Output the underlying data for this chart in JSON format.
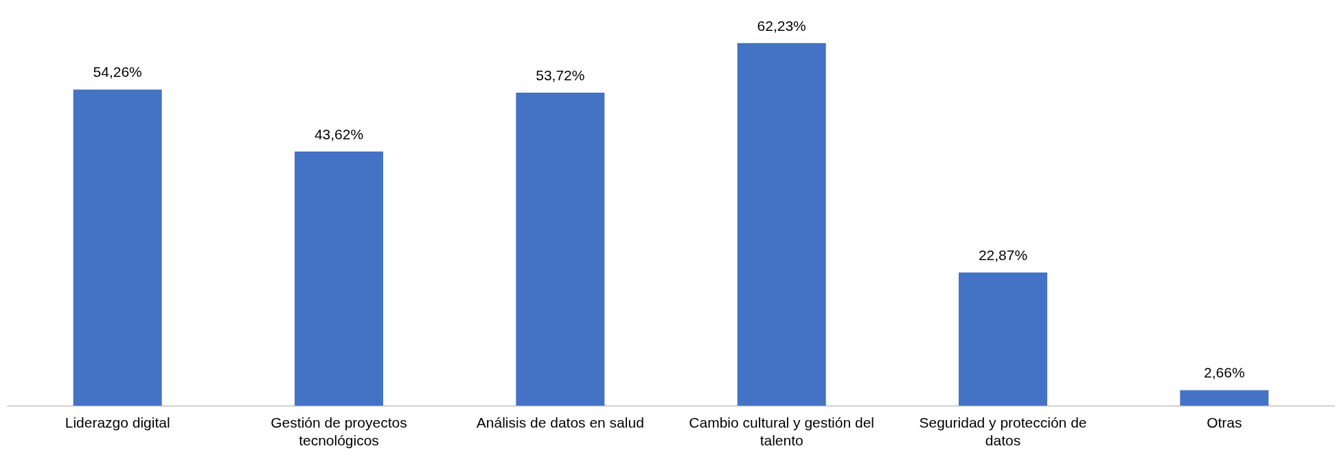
{
  "chart_data": {
    "type": "bar",
    "categories": [
      "Liderazgo digital",
      "Gestión de proyectos tecnológicos",
      "Análisis de datos en salud",
      "Cambio cultural y gestión del talento",
      "Seguridad y protección de datos",
      "Otras"
    ],
    "values": [
      54.26,
      43.62,
      53.72,
      62.23,
      22.87,
      2.66
    ],
    "value_labels": [
      "54,26%",
      "43,62%",
      "53,72%",
      "62,23%",
      "22,87%",
      "2,66%"
    ],
    "color": "#4472c4"
  }
}
